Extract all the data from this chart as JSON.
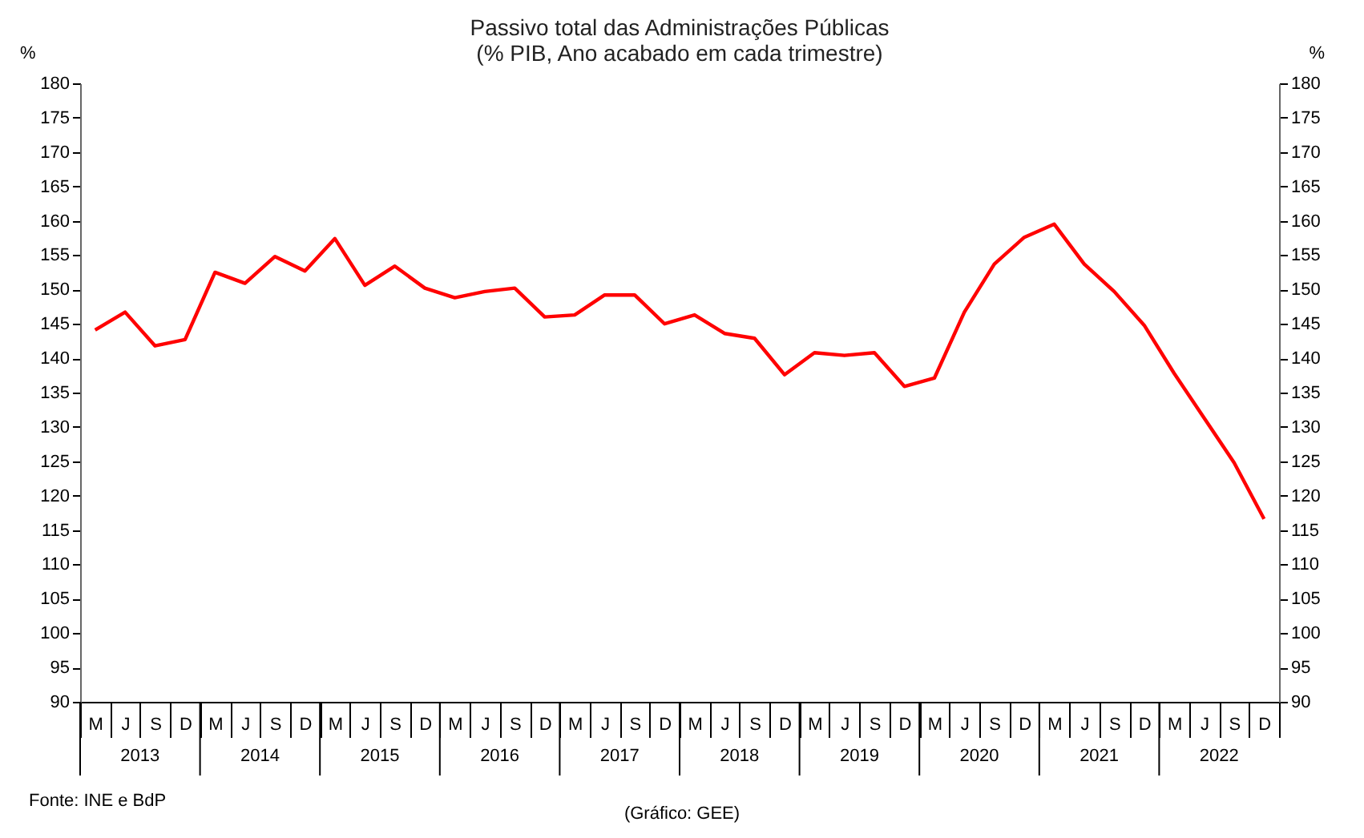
{
  "chart_data": {
    "type": "line",
    "title": "Passivo total das Administrações Públicas",
    "subtitle": "(% PIB, Ano acabado em cada trimestre)",
    "ylabel": "%",
    "y2label": "%",
    "categories": [
      "M",
      "J",
      "S",
      "D",
      "M",
      "J",
      "S",
      "D",
      "M",
      "J",
      "S",
      "D",
      "M",
      "J",
      "S",
      "D",
      "M",
      "J",
      "S",
      "D",
      "M",
      "J",
      "S",
      "D",
      "M",
      "J",
      "S",
      "D",
      "M",
      "J",
      "S",
      "D",
      "M",
      "J",
      "S",
      "D",
      "M",
      "J",
      "S",
      "D"
    ],
    "series": [
      {
        "color": "#ff0000",
        "values": [
          144.1,
          146.7,
          141.8,
          142.7,
          152.5,
          150.9,
          154.8,
          152.7,
          157.4,
          150.6,
          153.4,
          150.2,
          148.8,
          149.7,
          150.2,
          146.0,
          146.3,
          149.2,
          149.2,
          145.0,
          146.3,
          143.6,
          142.9,
          137.6,
          140.8,
          140.4,
          140.8,
          135.9,
          137.1,
          146.7,
          153.7,
          157.6,
          159.5,
          153.7,
          149.7,
          144.8,
          137.8,
          131.3,
          124.8,
          116.6
        ]
      }
    ],
    "ylim": [
      90,
      180
    ],
    "yticks": [
      90,
      95,
      100,
      105,
      110,
      115,
      120,
      125,
      130,
      135,
      140,
      145,
      150,
      155,
      160,
      165,
      170,
      175,
      180
    ],
    "y2lim": [
      90,
      180
    ],
    "y2ticks": [
      90,
      95,
      100,
      105,
      110,
      115,
      120,
      125,
      130,
      135,
      140,
      145,
      150,
      155,
      160,
      165,
      170,
      175,
      180
    ],
    "grid": false,
    "marker": "none",
    "line_style": "solid",
    "annotations": [
      "Fonte: INE e BdP",
      "(Gráfico: GEE)",
      "2013",
      "2014",
      "2015",
      "2016",
      "2017",
      "2018",
      "2019",
      "2020",
      "2021",
      "2022"
    ]
  }
}
